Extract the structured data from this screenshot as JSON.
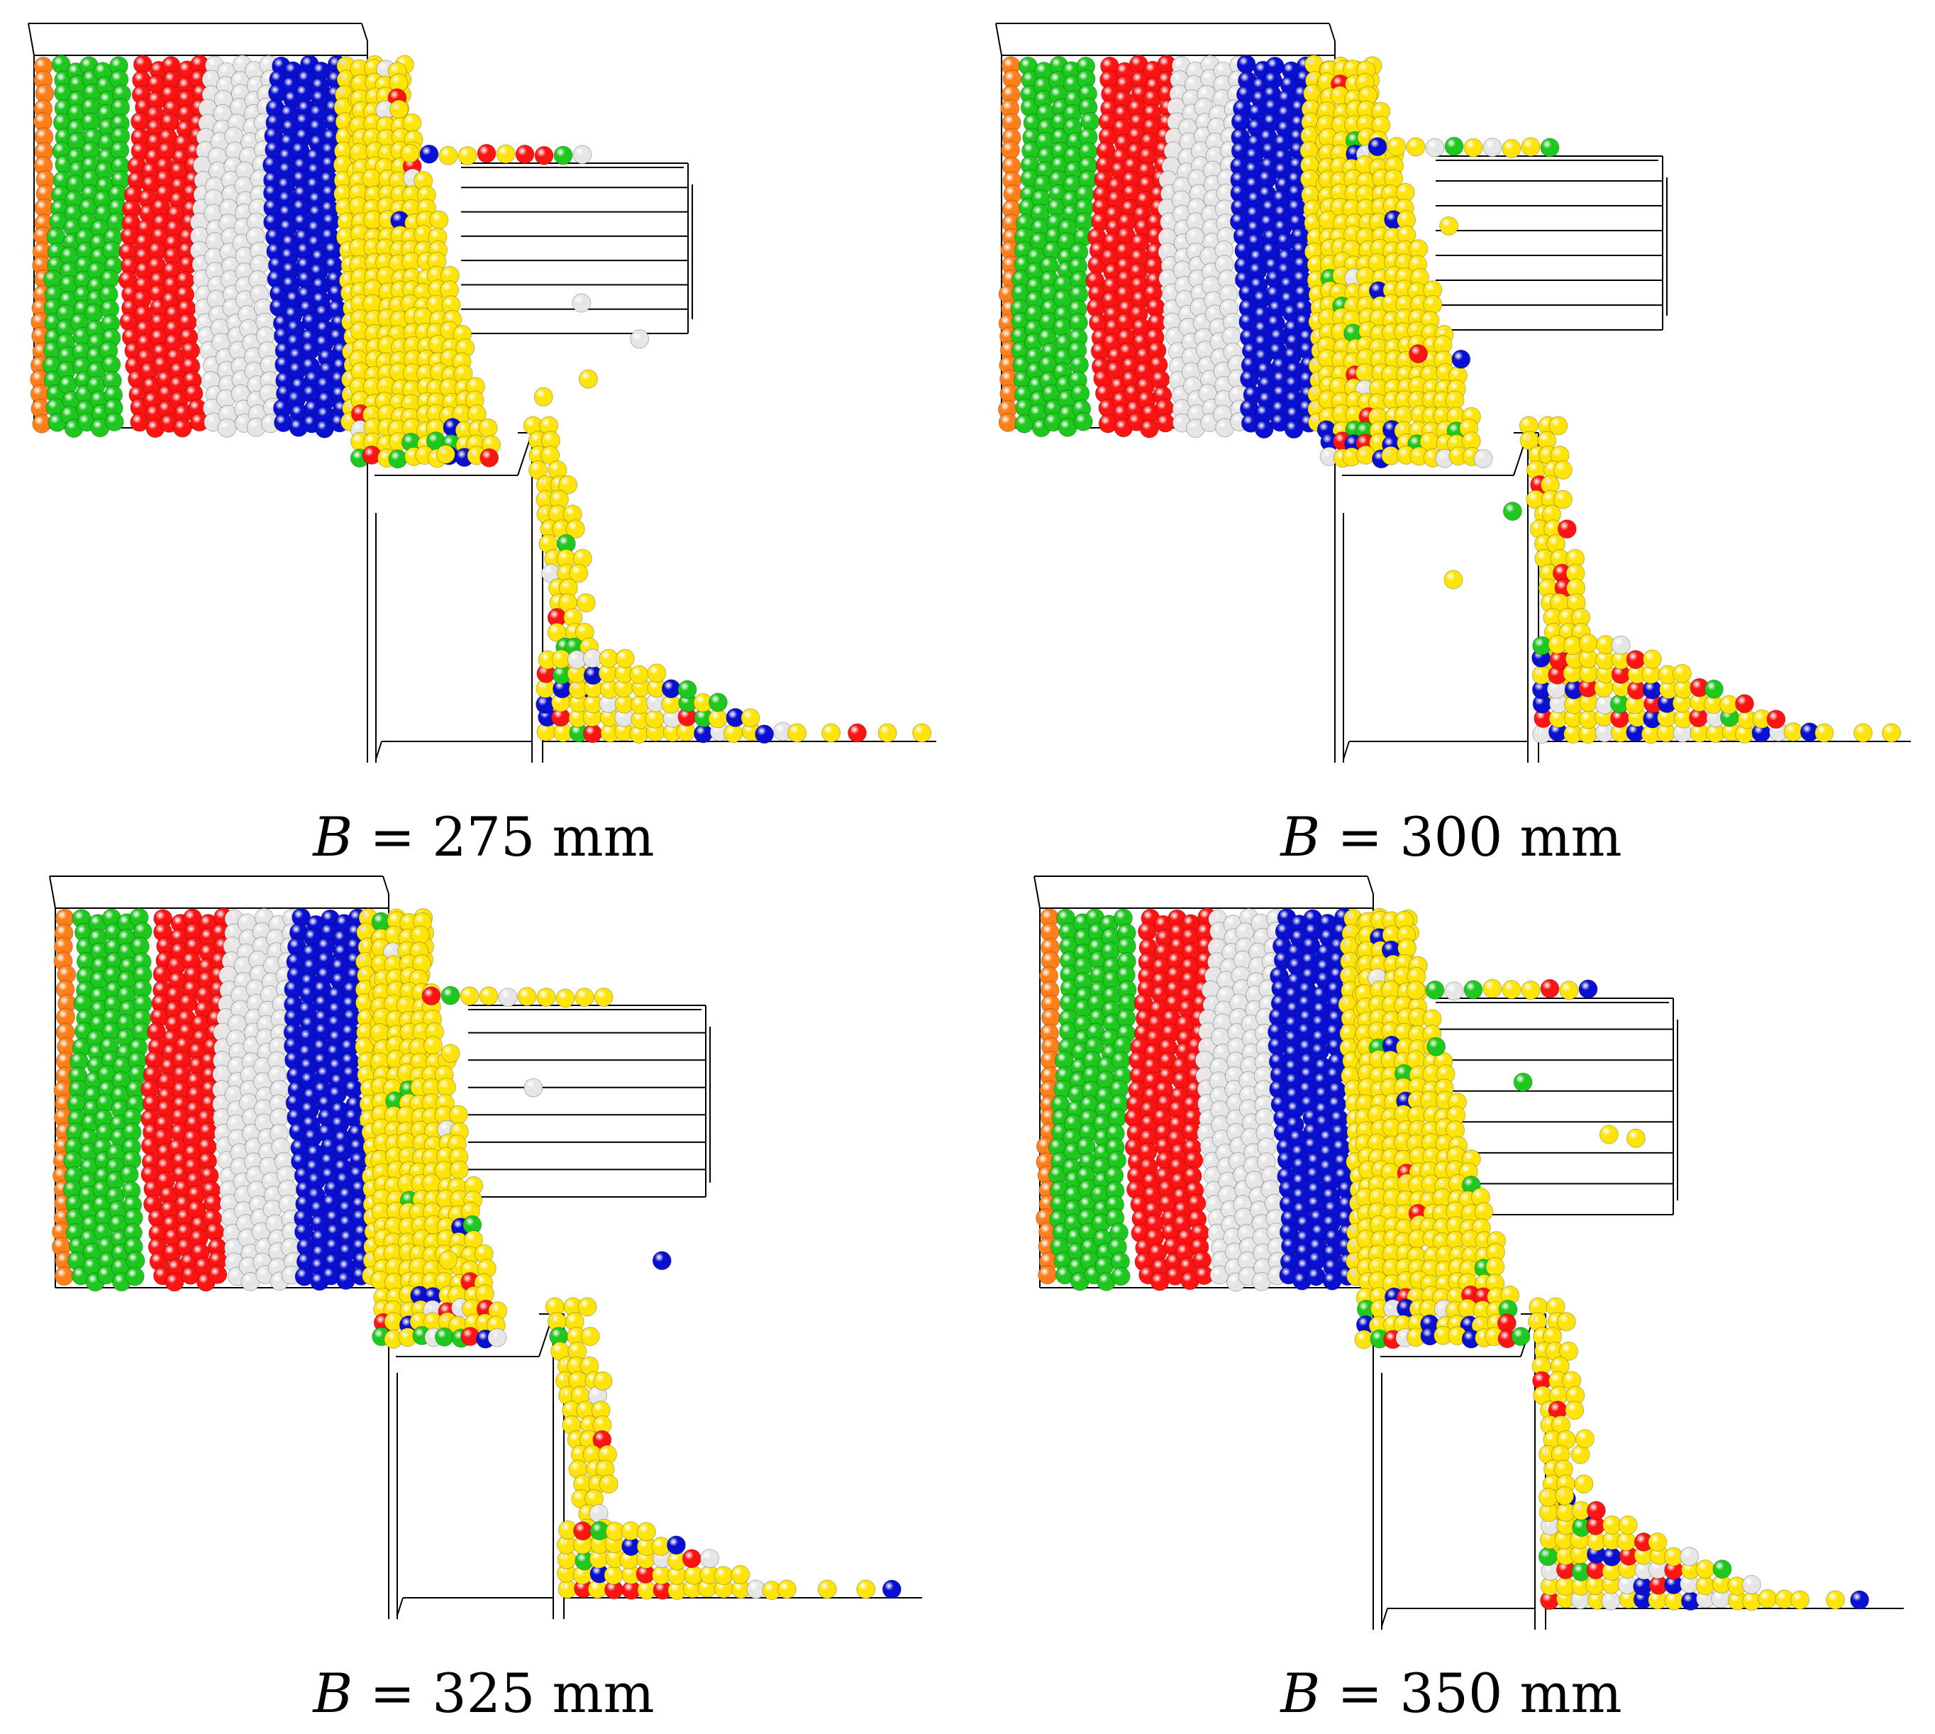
{
  "colors": {
    "orange": "#ff7f1a",
    "green": "#1ec81e",
    "red": "#ff1414",
    "white": "#e6e6e6",
    "blue": "#0a10d0",
    "yellow": "#ffe40a",
    "line": "#000000"
  },
  "panels": [
    {
      "variable": "B",
      "equals": "=",
      "value": "275 mm"
    },
    {
      "variable": "B",
      "equals": "=",
      "value": "300 mm"
    },
    {
      "variable": "B",
      "equals": "=",
      "value": "325 mm"
    },
    {
      "variable": "B",
      "equals": "=",
      "value": "350 mm"
    }
  ]
}
